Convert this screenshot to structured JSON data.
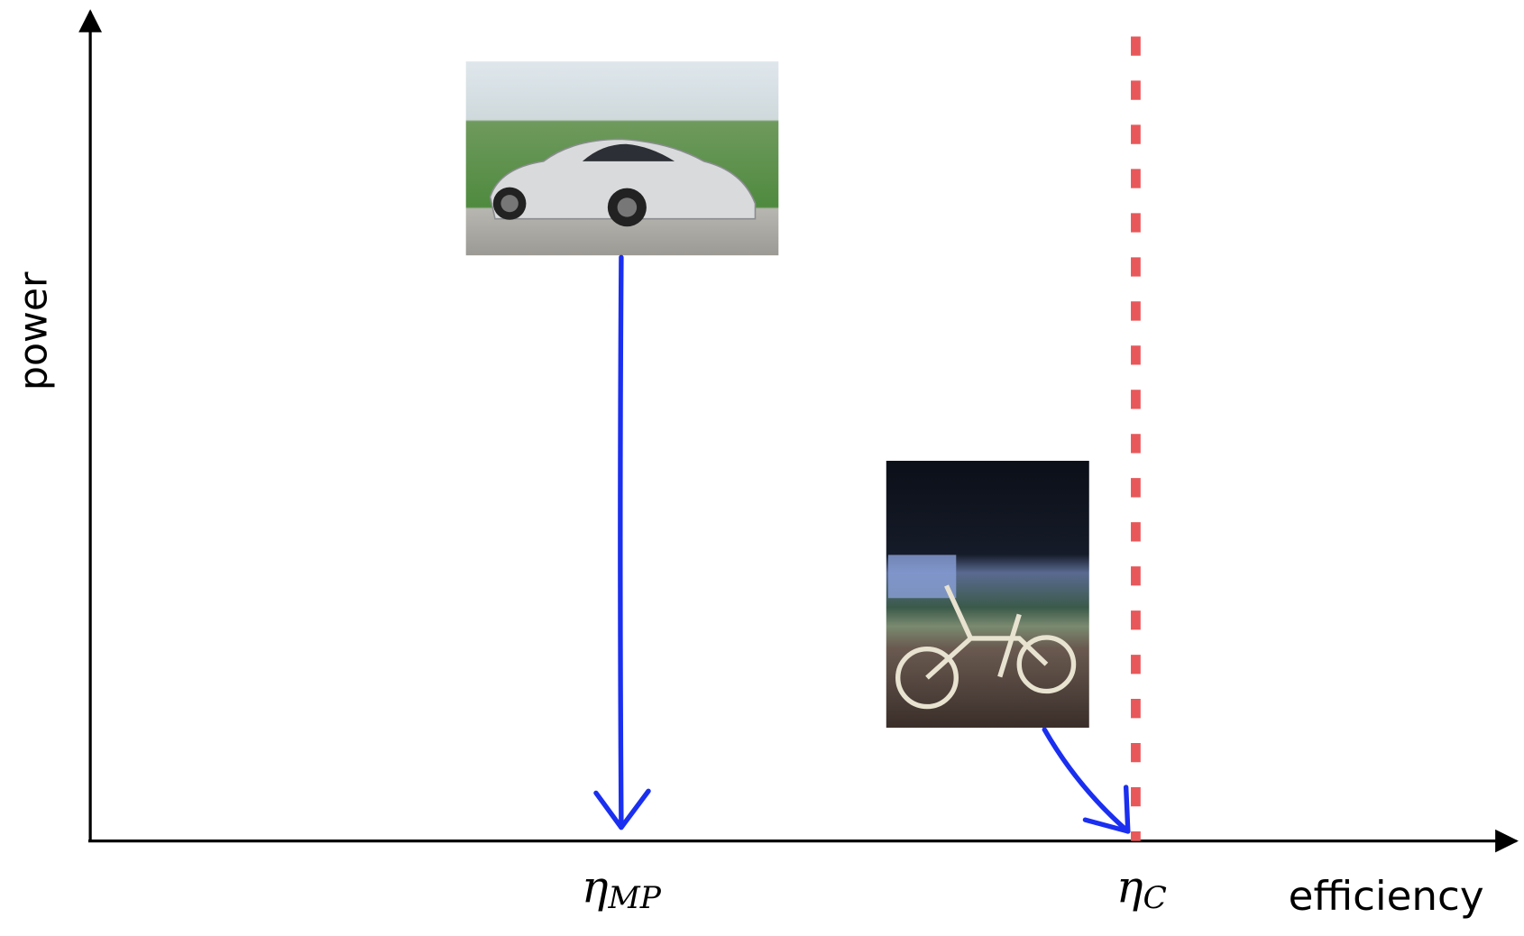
{
  "axes": {
    "y_label": "power",
    "x_label": "efficiency"
  },
  "markers": [
    {
      "symbol": "η",
      "subscript": "MP"
    },
    {
      "symbol": "η",
      "subscript": "C"
    }
  ]
}
